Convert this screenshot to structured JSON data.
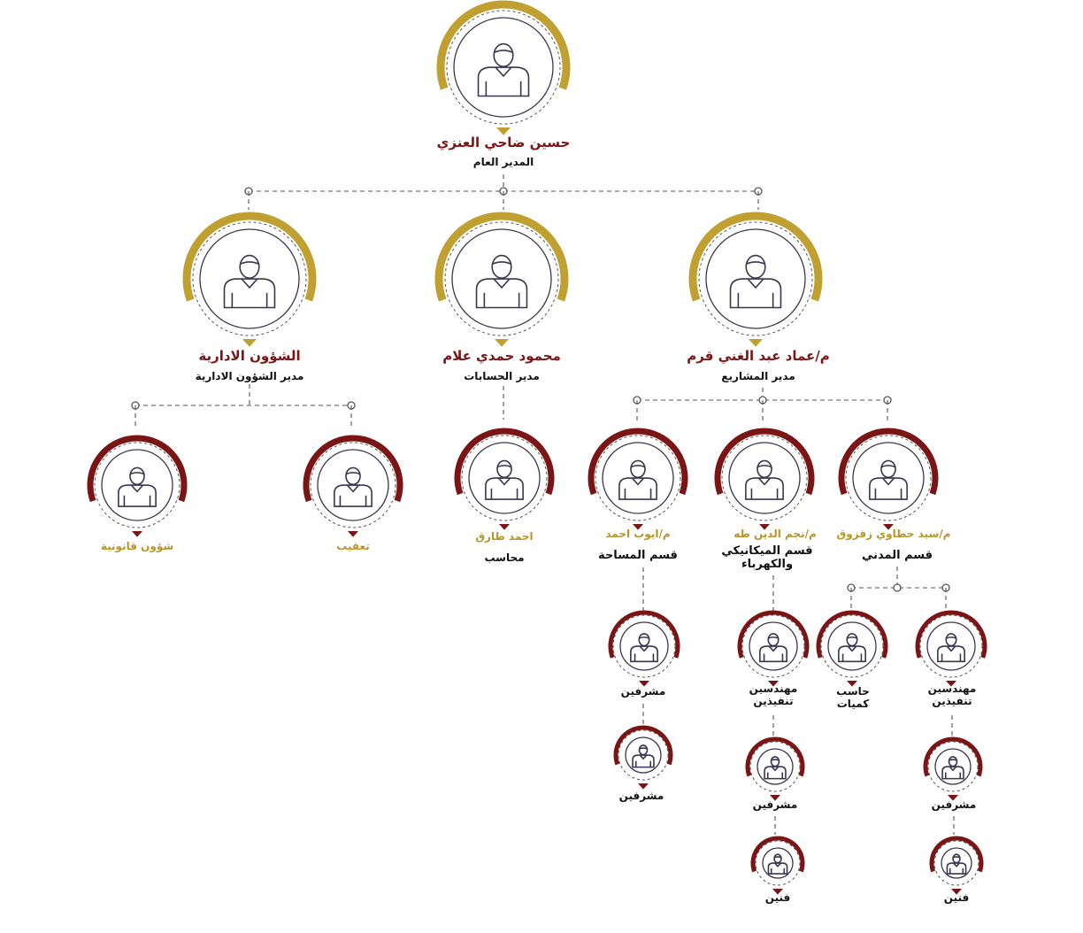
{
  "colors": {
    "gold": "#c0a030",
    "maroon": "#7b1414",
    "line": "#555555",
    "icon": "#3a3550"
  },
  "nodes": {
    "ceo": {
      "name": "حسين ضاحي العنزي",
      "title": "المدير العام",
      "ring": "gold"
    },
    "projects": {
      "name": "م/عماد عبد الغني قرم",
      "title": "مدير المشاريع",
      "ring": "gold"
    },
    "accounts": {
      "name": "محمود حمدي علام",
      "title": "مدير الحسابات",
      "ring": "gold"
    },
    "admin": {
      "name": "الشؤون الادارية",
      "title": "مدير الشؤون الادارية",
      "ring": "gold"
    },
    "legal": {
      "name": "شؤون قانونية",
      "ring": "maroon"
    },
    "followup": {
      "name": "تعقيب",
      "ring": "maroon"
    },
    "accountant": {
      "name": "احمد طارق",
      "title": "محاسب",
      "ring": "maroon"
    },
    "survey": {
      "name": "م/ايوب احمد",
      "title": "قسم المساحة",
      "ring": "maroon"
    },
    "mech": {
      "name": "م/نجم الدين طه",
      "title": "قسم الميكانيكي والكهرباء",
      "ring": "maroon"
    },
    "civil": {
      "name": "م/سيد حطاوي زقزوق",
      "title": "قسم المدني",
      "ring": "maroon"
    },
    "survey_s1": {
      "title": "مشرفين",
      "ring": "maroon"
    },
    "survey_s2": {
      "title": "مشرفين",
      "ring": "maroon"
    },
    "mech_eng": {
      "title": "مهندسين تنفيذين",
      "ring": "maroon"
    },
    "mech_sup": {
      "title": "مشرفين",
      "ring": "maroon"
    },
    "mech_tech": {
      "title": "فنين",
      "ring": "maroon"
    },
    "civil_qs": {
      "title": "حاسب كميات",
      "ring": "maroon"
    },
    "civil_eng": {
      "title": "مهندسين تنفيذين",
      "ring": "maroon"
    },
    "civil_sup": {
      "title": "مشرفين",
      "ring": "maroon"
    },
    "civil_tech": {
      "title": "فنين",
      "ring": "maroon"
    }
  }
}
